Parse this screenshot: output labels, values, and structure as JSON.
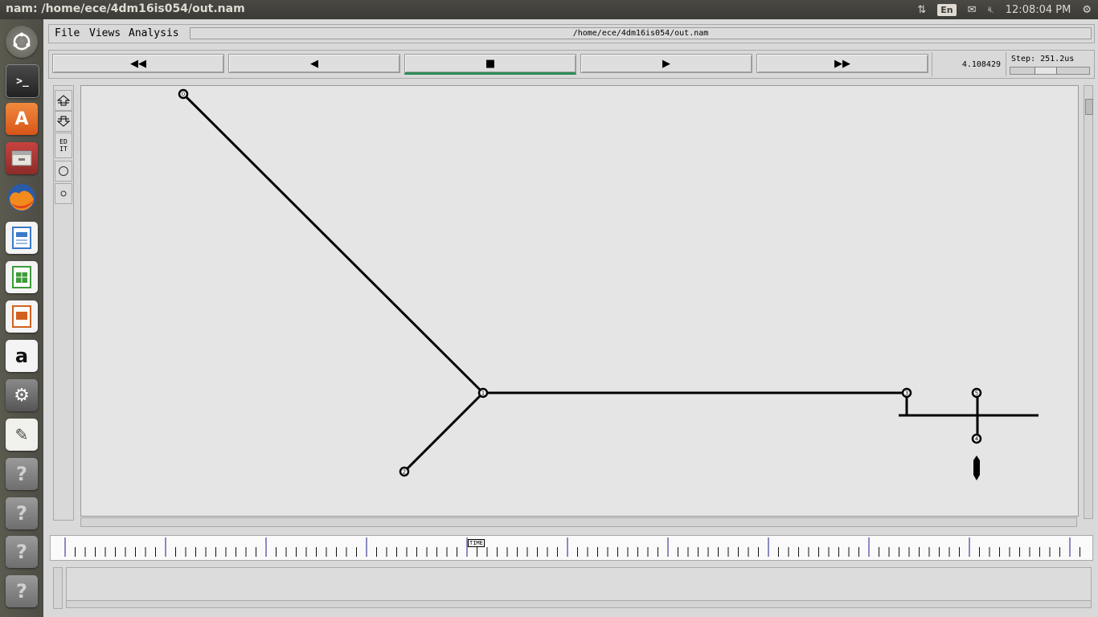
{
  "window": {
    "title": "nam: /home/ece/4dm16is054/out.nam"
  },
  "system_tray": {
    "language": "En",
    "clock": "12:08:04 PM"
  },
  "launcher": {
    "items": [
      {
        "name": "dash-home-icon"
      },
      {
        "name": "terminal-icon"
      },
      {
        "name": "software-center-icon"
      },
      {
        "name": "files-icon"
      },
      {
        "name": "firefox-icon"
      },
      {
        "name": "writer-icon"
      },
      {
        "name": "calc-icon"
      },
      {
        "name": "impress-icon"
      },
      {
        "name": "amazon-icon"
      },
      {
        "name": "settings-icon"
      },
      {
        "name": "text-editor-icon"
      },
      {
        "name": "unknown-app-icon",
        "glyph": "?"
      },
      {
        "name": "unknown-app-icon",
        "glyph": "?"
      },
      {
        "name": "unknown-app-icon",
        "glyph": "?"
      },
      {
        "name": "unknown-app-icon",
        "glyph": "?"
      }
    ]
  },
  "menu": {
    "file": "File",
    "views": "Views",
    "analysis": "Analysis"
  },
  "file_path": "/home/ece/4dm16is054/out.nam",
  "transport": {
    "rewind": "◀◀",
    "back": "◀",
    "stop": "■",
    "play": "▶",
    "fast_forward": "▶▶"
  },
  "current_time": "4.108429",
  "step": {
    "label": "Step: 251.2us"
  },
  "tools": {
    "edit_label": "ED\nIT"
  },
  "timeline": {
    "label": "TIME"
  },
  "topology": {
    "nodes": [
      {
        "id": "0",
        "label": "0"
      },
      {
        "id": "1",
        "label": "1"
      },
      {
        "id": "2",
        "label": "2"
      },
      {
        "id": "3",
        "label": "3"
      },
      {
        "id": "4",
        "label": "4"
      },
      {
        "id": "5",
        "label": "5"
      }
    ]
  }
}
